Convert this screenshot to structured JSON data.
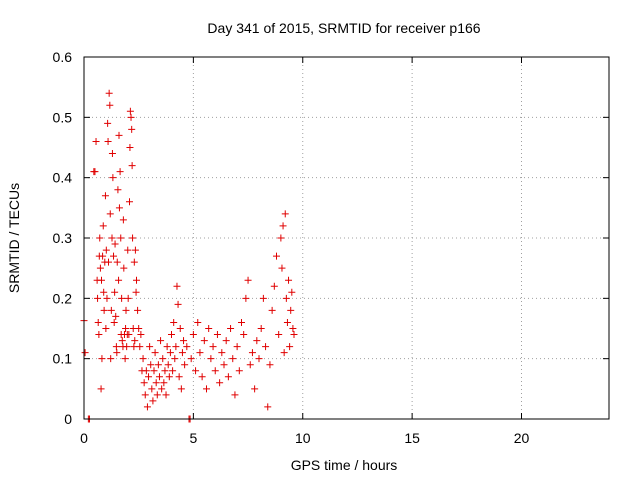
{
  "chart_data": {
    "type": "scatter",
    "title": "Day 341 of 2015, SRMTID for receiver p166",
    "xlabel": "GPS time / hours",
    "ylabel": "SRMTID / TECUs",
    "xlim": [
      0,
      24
    ],
    "ylim": [
      0,
      0.6
    ],
    "grid": true,
    "marker": "+",
    "marker_color": "#e00000",
    "x_ticks": [
      0,
      5,
      10,
      15,
      20
    ],
    "x_tick_labels": [
      "0",
      "5",
      "10",
      "15",
      "20"
    ],
    "y_ticks": [
      0,
      0.1,
      0.2,
      0.3,
      0.4,
      0.5,
      0.6
    ],
    "y_tick_labels": [
      "0",
      "0.1",
      "0.2",
      "0.3",
      "0.4",
      "0.5",
      "0.6"
    ],
    "series": [
      {
        "name": "SRMTID",
        "points": [
          [
            0.0,
            0.163
          ],
          [
            0.05,
            0.11
          ],
          [
            0.2,
            0.0
          ],
          [
            0.25,
            0.0
          ],
          [
            0.45,
            0.41
          ],
          [
            0.5,
            0.41
          ],
          [
            0.55,
            0.46
          ],
          [
            0.6,
            0.23
          ],
          [
            0.62,
            0.2
          ],
          [
            0.65,
            0.16
          ],
          [
            0.68,
            0.14
          ],
          [
            0.7,
            0.27
          ],
          [
            0.72,
            0.3
          ],
          [
            0.75,
            0.25
          ],
          [
            0.78,
            0.05
          ],
          [
            0.8,
            0.23
          ],
          [
            0.82,
            0.1
          ],
          [
            0.85,
            0.27
          ],
          [
            0.88,
            0.32
          ],
          [
            0.9,
            0.21
          ],
          [
            0.92,
            0.18
          ],
          [
            0.95,
            0.26
          ],
          [
            0.98,
            0.37
          ],
          [
            1.0,
            0.15
          ],
          [
            1.02,
            0.28
          ],
          [
            1.05,
            0.2
          ],
          [
            1.08,
            0.49
          ],
          [
            1.1,
            0.46
          ],
          [
            1.12,
            0.26
          ],
          [
            1.15,
            0.54
          ],
          [
            1.18,
            0.52
          ],
          [
            1.2,
            0.34
          ],
          [
            1.22,
            0.1
          ],
          [
            1.25,
            0.18
          ],
          [
            1.28,
            0.3
          ],
          [
            1.3,
            0.44
          ],
          [
            1.32,
            0.4
          ],
          [
            1.35,
            0.27
          ],
          [
            1.38,
            0.16
          ],
          [
            1.4,
            0.21
          ],
          [
            1.42,
            0.29
          ],
          [
            1.45,
            0.17
          ],
          [
            1.48,
            0.12
          ],
          [
            1.5,
            0.11
          ],
          [
            1.52,
            0.26
          ],
          [
            1.55,
            0.38
          ],
          [
            1.58,
            0.23
          ],
          [
            1.6,
            0.47
          ],
          [
            1.62,
            0.35
          ],
          [
            1.65,
            0.41
          ],
          [
            1.68,
            0.3
          ],
          [
            1.7,
            0.14
          ],
          [
            1.72,
            0.2
          ],
          [
            1.75,
            0.13
          ],
          [
            1.78,
            0.12
          ],
          [
            1.8,
            0.33
          ],
          [
            1.82,
            0.25
          ],
          [
            1.85,
            0.14
          ],
          [
            1.88,
            0.1
          ],
          [
            1.9,
            0.15
          ],
          [
            1.92,
            0.18
          ],
          [
            1.95,
            0.12
          ],
          [
            1.98,
            0.14
          ],
          [
            2.0,
            0.28
          ],
          [
            2.02,
            0.2
          ],
          [
            2.05,
            0.14
          ],
          [
            2.08,
            0.36
          ],
          [
            2.1,
            0.45
          ],
          [
            2.12,
            0.51
          ],
          [
            2.15,
            0.5
          ],
          [
            2.18,
            0.48
          ],
          [
            2.2,
            0.42
          ],
          [
            2.22,
            0.3
          ],
          [
            2.25,
            0.15
          ],
          [
            2.28,
            0.12
          ],
          [
            2.3,
            0.26
          ],
          [
            2.32,
            0.13
          ],
          [
            2.35,
            0.28
          ],
          [
            2.38,
            0.21
          ],
          [
            2.4,
            0.23
          ],
          [
            2.45,
            0.18
          ],
          [
            2.5,
            0.15
          ],
          [
            2.55,
            0.12
          ],
          [
            2.6,
            0.14
          ],
          [
            2.65,
            0.08
          ],
          [
            2.7,
            0.1
          ],
          [
            2.75,
            0.06
          ],
          [
            2.8,
            0.04
          ],
          [
            2.85,
            0.08
          ],
          [
            2.9,
            0.02
          ],
          [
            2.95,
            0.07
          ],
          [
            3.0,
            0.12
          ],
          [
            3.05,
            0.09
          ],
          [
            3.1,
            0.05
          ],
          [
            3.15,
            0.03
          ],
          [
            3.2,
            0.08
          ],
          [
            3.25,
            0.11
          ],
          [
            3.3,
            0.06
          ],
          [
            3.35,
            0.04
          ],
          [
            3.4,
            0.09
          ],
          [
            3.45,
            0.07
          ],
          [
            3.5,
            0.13
          ],
          [
            3.55,
            0.05
          ],
          [
            3.6,
            0.1
          ],
          [
            3.65,
            0.06
          ],
          [
            3.7,
            0.08
          ],
          [
            3.75,
            0.04
          ],
          [
            3.8,
            0.12
          ],
          [
            3.85,
            0.09
          ],
          [
            3.9,
            0.07
          ],
          [
            3.95,
            0.11
          ],
          [
            4.0,
            0.14
          ],
          [
            4.05,
            0.08
          ],
          [
            4.1,
            0.16
          ],
          [
            4.15,
            0.1
          ],
          [
            4.2,
            0.12
          ],
          [
            4.25,
            0.22
          ],
          [
            4.3,
            0.19
          ],
          [
            4.35,
            0.07
          ],
          [
            4.4,
            0.15
          ],
          [
            4.45,
            0.05
          ],
          [
            4.5,
            0.11
          ],
          [
            4.55,
            0.13
          ],
          [
            4.6,
            0.09
          ],
          [
            4.7,
            0.12
          ],
          [
            4.8,
            0.0
          ],
          [
            4.85,
            0.0
          ],
          [
            4.9,
            0.1
          ],
          [
            5.0,
            0.14
          ],
          [
            5.1,
            0.08
          ],
          [
            5.2,
            0.16
          ],
          [
            5.3,
            0.11
          ],
          [
            5.4,
            0.07
          ],
          [
            5.5,
            0.13
          ],
          [
            5.6,
            0.05
          ],
          [
            5.7,
            0.15
          ],
          [
            5.8,
            0.1
          ],
          [
            5.9,
            0.12
          ],
          [
            6.0,
            0.08
          ],
          [
            6.1,
            0.14
          ],
          [
            6.2,
            0.06
          ],
          [
            6.3,
            0.11
          ],
          [
            6.4,
            0.09
          ],
          [
            6.5,
            0.13
          ],
          [
            6.6,
            0.07
          ],
          [
            6.7,
            0.15
          ],
          [
            6.8,
            0.1
          ],
          [
            6.9,
            0.04
          ],
          [
            7.0,
            0.12
          ],
          [
            7.1,
            0.08
          ],
          [
            7.2,
            0.16
          ],
          [
            7.3,
            0.14
          ],
          [
            7.4,
            0.2
          ],
          [
            7.5,
            0.23
          ],
          [
            7.6,
            0.09
          ],
          [
            7.7,
            0.11
          ],
          [
            7.8,
            0.05
          ],
          [
            7.9,
            0.13
          ],
          [
            8.0,
            0.1
          ],
          [
            8.1,
            0.15
          ],
          [
            8.2,
            0.2
          ],
          [
            8.3,
            0.12
          ],
          [
            8.4,
            0.02
          ],
          [
            8.5,
            0.09
          ],
          [
            8.6,
            0.18
          ],
          [
            8.7,
            0.22
          ],
          [
            8.8,
            0.27
          ],
          [
            8.9,
            0.14
          ],
          [
            9.0,
            0.3
          ],
          [
            9.05,
            0.25
          ],
          [
            9.1,
            0.32
          ],
          [
            9.15,
            0.11
          ],
          [
            9.2,
            0.34
          ],
          [
            9.25,
            0.2
          ],
          [
            9.3,
            0.16
          ],
          [
            9.35,
            0.23
          ],
          [
            9.4,
            0.12
          ],
          [
            9.45,
            0.18
          ],
          [
            9.5,
            0.21
          ],
          [
            9.55,
            0.15
          ],
          [
            9.6,
            0.14
          ]
        ]
      }
    ]
  }
}
